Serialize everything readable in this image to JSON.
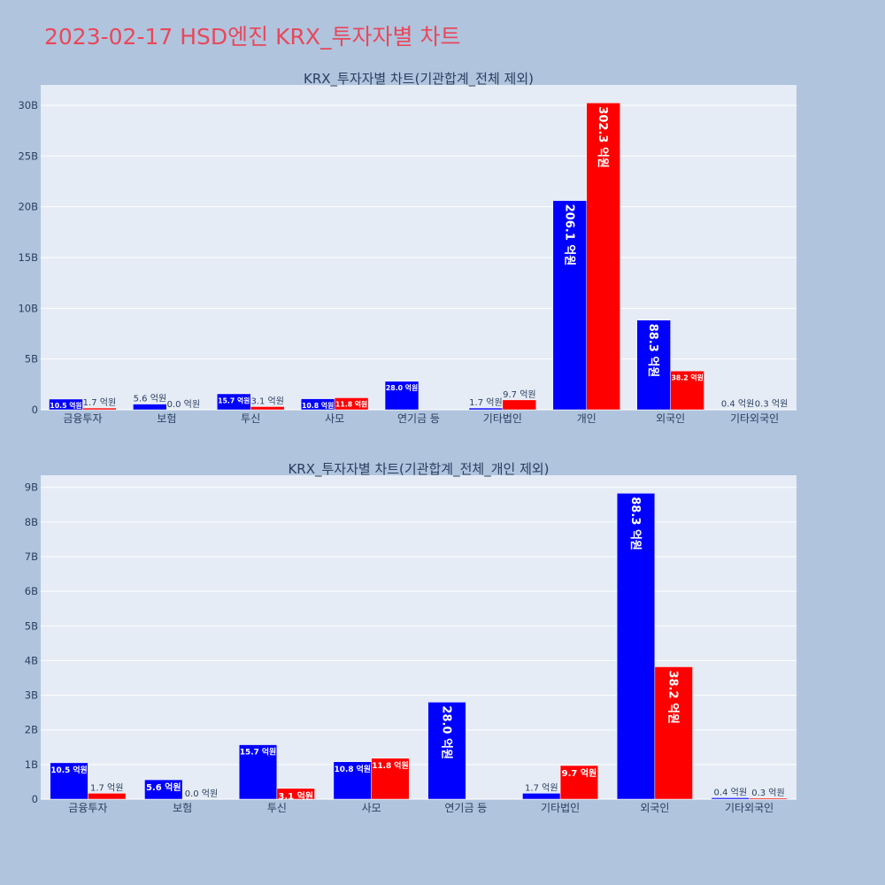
{
  "page_title": "2023-02-17 HSD엔진 KRX_투자자별 차트",
  "colors": {
    "buy": "#0000ff",
    "sell": "#ff0000",
    "title": "#e8485a",
    "plot_bg": "#e5ecf6"
  },
  "chart_data": [
    {
      "type": "bar",
      "title": "KRX_투자자별 차트(기관합계_전체 제외)",
      "categories": [
        "금융투자",
        "보험",
        "투신",
        "사모",
        "연기금 등",
        "기타법인",
        "개인",
        "외국인",
        "기타외국인"
      ],
      "ylim": [
        0,
        32000000000
      ],
      "yticks": [
        0,
        5000000000,
        10000000000,
        15000000000,
        20000000000,
        25000000000,
        30000000000
      ],
      "ytick_labels": [
        "0",
        "5B",
        "10B",
        "15B",
        "20B",
        "25B",
        "30B"
      ],
      "series": [
        {
          "values": [
            1050000000,
            560000000,
            1570000000,
            1080000000,
            2800000000,
            170000000,
            20610000000,
            8830000000,
            40000000
          ],
          "labels": [
            "10.5 억원",
            "5.6 억원",
            "15.7 억원",
            "10.8 억원",
            "28.0 억원",
            "1.7 억원",
            "206.1 억원",
            "88.3 억원",
            "0.4 억원"
          ]
        },
        {
          "values": [
            170000000,
            0,
            310000000,
            1180000000,
            null,
            970000000,
            30230000000,
            3820000000,
            30000000
          ],
          "labels": [
            "1.7 억원",
            "0.0 억원",
            "3.1 억원",
            "11.8 억원",
            "",
            "9.7 억원",
            "302.3 억원",
            "38.2 억원",
            "0.3 억원"
          ]
        }
      ],
      "grid": true,
      "legend": "none"
    },
    {
      "type": "bar",
      "title": "KRX_투자자별 차트(기관합계_전체_개인 제외)",
      "categories": [
        "금융투자",
        "보험",
        "투신",
        "사모",
        "연기금 등",
        "기타법인",
        "외국인",
        "기타외국인"
      ],
      "ylim": [
        0,
        9350000000
      ],
      "yticks": [
        0,
        1000000000,
        2000000000,
        3000000000,
        4000000000,
        5000000000,
        6000000000,
        7000000000,
        8000000000,
        9000000000
      ],
      "ytick_labels": [
        "0",
        "1B",
        "2B",
        "3B",
        "4B",
        "5B",
        "6B",
        "7B",
        "8B",
        "9B"
      ],
      "series": [
        {
          "values": [
            1050000000,
            560000000,
            1570000000,
            1080000000,
            2800000000,
            170000000,
            8830000000,
            40000000
          ],
          "labels": [
            "10.5 억원",
            "5.6 억원",
            "15.7 억원",
            "10.8 억원",
            "28.0 억원",
            "1.7 억원",
            "88.3 억원",
            "0.4 억원"
          ]
        },
        {
          "values": [
            170000000,
            0,
            310000000,
            1180000000,
            null,
            970000000,
            3820000000,
            30000000
          ],
          "labels": [
            "1.7 억원",
            "0.0 억원",
            "3.1 억원",
            "11.8 억원",
            "",
            "9.7 억원",
            "38.2 억원",
            "0.3 억원"
          ]
        }
      ],
      "grid": true,
      "legend": "none"
    }
  ]
}
